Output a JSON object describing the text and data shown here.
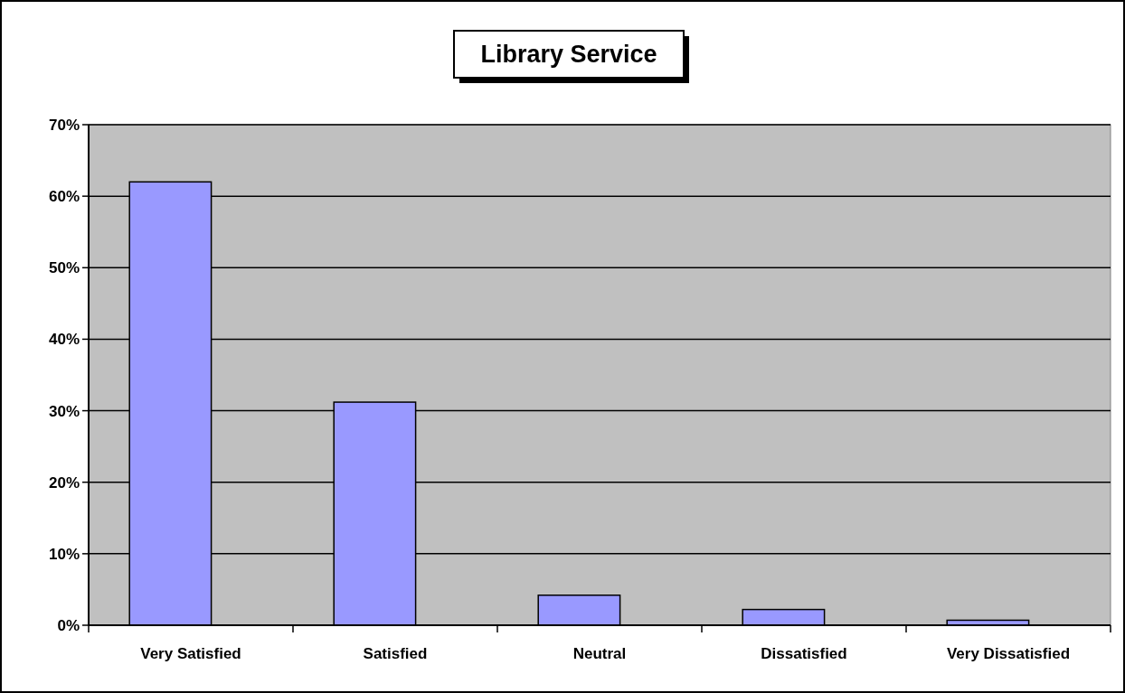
{
  "chart_data": {
    "type": "bar",
    "title": "Library Service",
    "categories": [
      "Very Satisfied",
      "Satisfied",
      "Neutral",
      "Dissatisfied",
      "Very Dissatisfied"
    ],
    "values": [
      62,
      31.2,
      4.2,
      2.2,
      0.7
    ],
    "color": "#9999ff",
    "ylim": [
      0,
      70
    ],
    "yticks": [
      {
        "value": 0,
        "label": "0%"
      },
      {
        "value": 10,
        "label": "10%"
      },
      {
        "value": 20,
        "label": "20%"
      },
      {
        "value": 30,
        "label": "30%"
      },
      {
        "value": 40,
        "label": "40%"
      },
      {
        "value": 50,
        "label": "50%"
      },
      {
        "value": 60,
        "label": "60%"
      },
      {
        "value": 70,
        "label": "70%"
      }
    ],
    "grid": "y"
  }
}
